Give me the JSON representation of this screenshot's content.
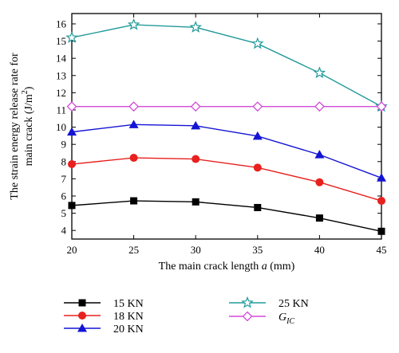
{
  "chart_data": {
    "type": "line",
    "title": "",
    "xlabel": "The main crack length a (mm)",
    "xlabel_parts": {
      "prefix": "The main crack length ",
      "italic": "a",
      "suffix": " (mm)"
    },
    "ylabel": "The strain energy release rate for main crack (J/m2)",
    "ylabel_lines": [
      "The strain energy release rate for",
      "main crack (J/m",
      "2",
      ")"
    ],
    "x": [
      20,
      25,
      30,
      35,
      40,
      45
    ],
    "xlim": [
      20,
      45
    ],
    "ylim": [
      3.5,
      16.6
    ],
    "xticks": [
      20,
      25,
      30,
      35,
      40,
      45
    ],
    "yticks": [
      4,
      5,
      6,
      7,
      8,
      9,
      10,
      11,
      12,
      13,
      14,
      15,
      16
    ],
    "grid": false,
    "legend_placement": "bottom",
    "series": [
      {
        "name": "15 KN",
        "values": [
          5.45,
          5.72,
          5.66,
          5.33,
          4.72,
          3.95
        ],
        "color": "#000000",
        "marker": "square"
      },
      {
        "name": "18 KN",
        "values": [
          7.85,
          8.22,
          8.15,
          7.65,
          6.8,
          5.72
        ],
        "color": "#e8201e",
        "marker": "circle"
      },
      {
        "name": "20 KN",
        "values": [
          9.72,
          10.15,
          10.08,
          9.48,
          8.4,
          7.05
        ],
        "color": "#1414d4",
        "marker": "triangle"
      },
      {
        "name": "25 KN",
        "values": [
          15.2,
          15.95,
          15.8,
          14.85,
          13.15,
          11.2
        ],
        "color": "#229a9a",
        "marker": "star"
      },
      {
        "name": "G_IC",
        "values": [
          11.2,
          11.2,
          11.2,
          11.2,
          11.2,
          11.2
        ],
        "color": "#d24ad8",
        "marker": "diamond",
        "label_base": "G",
        "label_sub": "IC"
      }
    ]
  }
}
